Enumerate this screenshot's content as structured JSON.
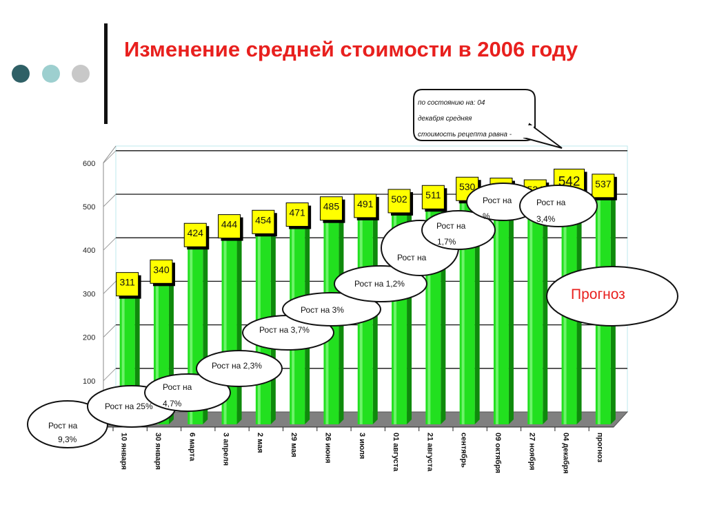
{
  "slide": {
    "title": "Изменение средней стоимости в 2006 году",
    "dots": [
      "#2f6066",
      "#9dcfcf",
      "#c8c8c8"
    ]
  },
  "chart_data": {
    "type": "bar",
    "categories": [
      "10 января",
      "30 января",
      "6 марта",
      "3 апреля",
      "2 мая",
      "29 мая",
      "26 июня",
      "3 июля",
      "01 августа",
      "21 августа",
      "сентябрь",
      "09 октября",
      "27 ноября",
      "04 декабря",
      "прогноз"
    ],
    "values": [
      311,
      340,
      424,
      444,
      454,
      471,
      485,
      491,
      502,
      511,
      530,
      528,
      524,
      542,
      537
    ],
    "ylim": [
      0,
      600
    ],
    "yticks": [
      100,
      200,
      300,
      400,
      500,
      600
    ],
    "grid": true,
    "colors": {
      "bar": "#22e01f",
      "bar_dark": "#0f8a0c",
      "label_box": "#ffff00",
      "floor": "#808080"
    }
  },
  "annotations": [
    {
      "lines": [
        "Рост на",
        "9,3%"
      ]
    },
    {
      "lines": [
        "Рост на 25%"
      ]
    },
    {
      "lines": [
        "Рост на",
        "4,7%"
      ]
    },
    {
      "lines": [
        "Рост на 2,3%"
      ]
    },
    {
      "lines": [
        "Рост на 3,7%"
      ]
    },
    {
      "lines": [
        "Рост на 3%"
      ]
    },
    {
      "lines": [
        "Рост на 1,2%"
      ]
    },
    {
      "lines": [
        "Рост на",
        ""
      ]
    },
    {
      "lines": [
        "Рост на",
        "1,7%"
      ]
    },
    {
      "lines": [
        "Рост на",
        "%"
      ]
    },
    {
      "lines": [
        "Рост на",
        "3,4%"
      ]
    }
  ],
  "forecast_label": "Прогноз",
  "callout": [
    "по состоянию на: 04",
    "декабря средняя",
    "стоимость рецепта равна -"
  ]
}
